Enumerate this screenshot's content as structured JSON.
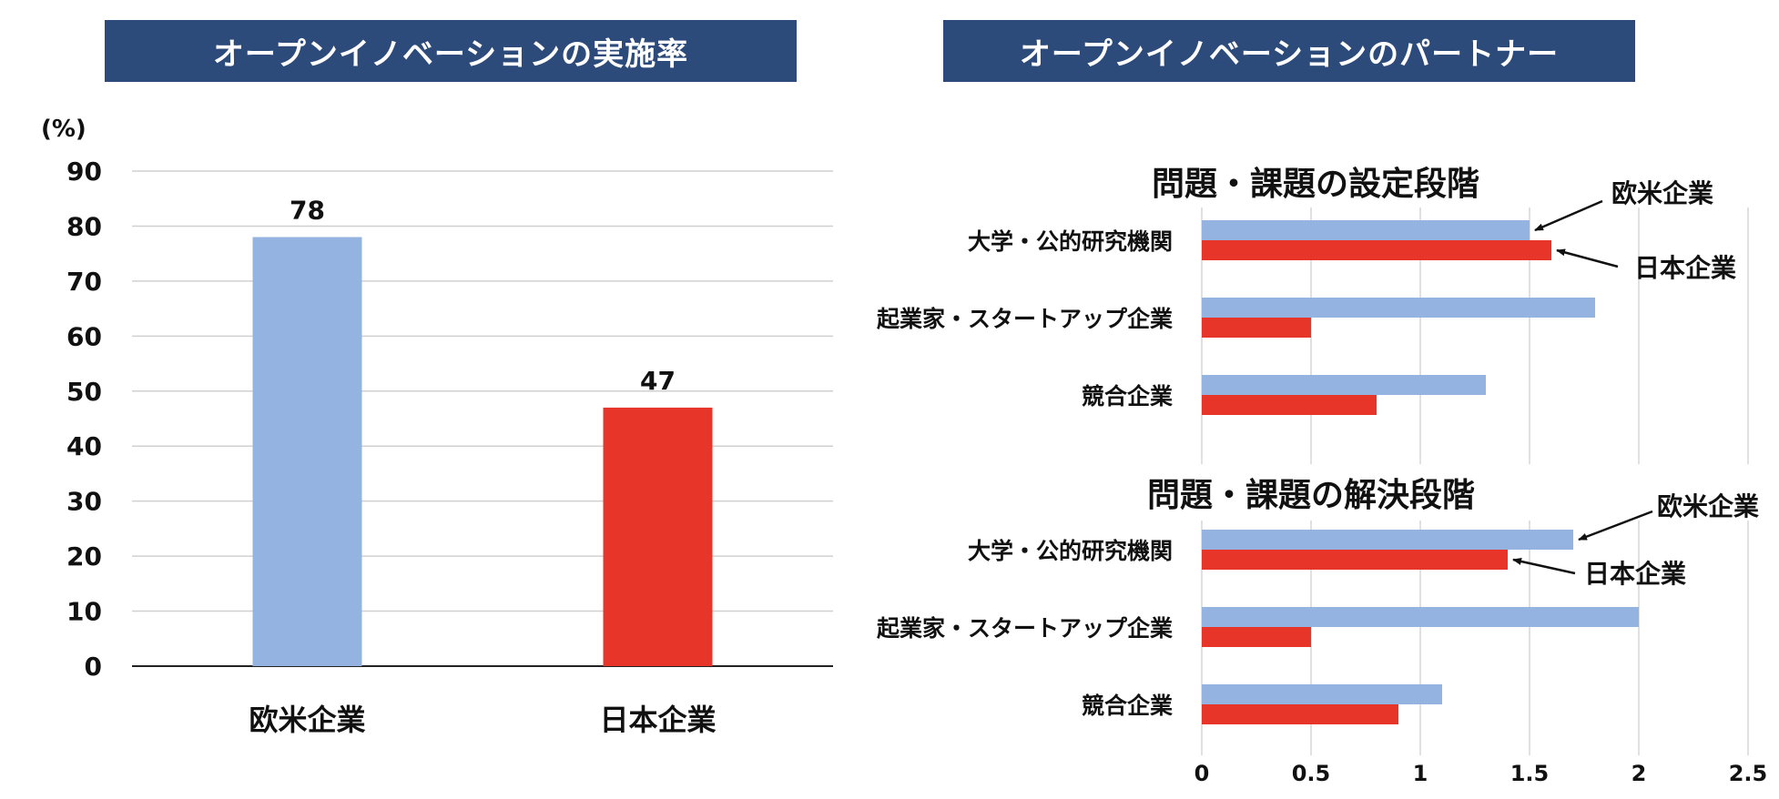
{
  "left_panel": {
    "header": "オープンイノベーションの実施率"
  },
  "right_panel": {
    "header": "オープンイノベーションのパートナー"
  },
  "chart_data": [
    {
      "type": "bar",
      "title": "オープンイノベーションの実施率",
      "ylabel": "(%)",
      "xlabel": "",
      "ylim": [
        0,
        90
      ],
      "yticks": [
        "0",
        "10",
        "20",
        "30",
        "40",
        "50",
        "60",
        "70",
        "80",
        "90"
      ],
      "grid": true,
      "categories": [
        "欧米企業",
        "日本企業"
      ],
      "values": [
        78,
        47
      ],
      "data_labels": [
        "78",
        "47"
      ],
      "colors": [
        "#95b3e0",
        "#e8352a"
      ]
    },
    {
      "type": "bar",
      "orientation": "horizontal",
      "title": "問題・課題の設定段階",
      "categories": [
        "大学・公的研究機関",
        "起業家・スタートアップ企業",
        "競合企業"
      ],
      "series": [
        {
          "name": "欧米企業",
          "values": [
            1.5,
            1.8,
            1.3
          ],
          "color": "#95b3e0"
        },
        {
          "name": "日本企業",
          "values": [
            1.6,
            0.5,
            0.8
          ],
          "color": "#e8352a"
        }
      ],
      "xlim": [
        0,
        2.5
      ],
      "grid": true
    },
    {
      "type": "bar",
      "orientation": "horizontal",
      "title": "問題・課題の解決段階",
      "categories": [
        "大学・公的研究機関",
        "起業家・スタートアップ企業",
        "競合企業"
      ],
      "series": [
        {
          "name": "欧米企業",
          "values": [
            1.7,
            2.0,
            1.1
          ],
          "color": "#95b3e0"
        },
        {
          "name": "日本企業",
          "values": [
            1.4,
            0.5,
            0.9
          ],
          "color": "#e8352a"
        }
      ],
      "xlim": [
        0,
        2.5
      ],
      "xticks": [
        "0",
        "0.5",
        "1",
        "1.5",
        "2",
        "2.5"
      ],
      "grid": true
    }
  ]
}
